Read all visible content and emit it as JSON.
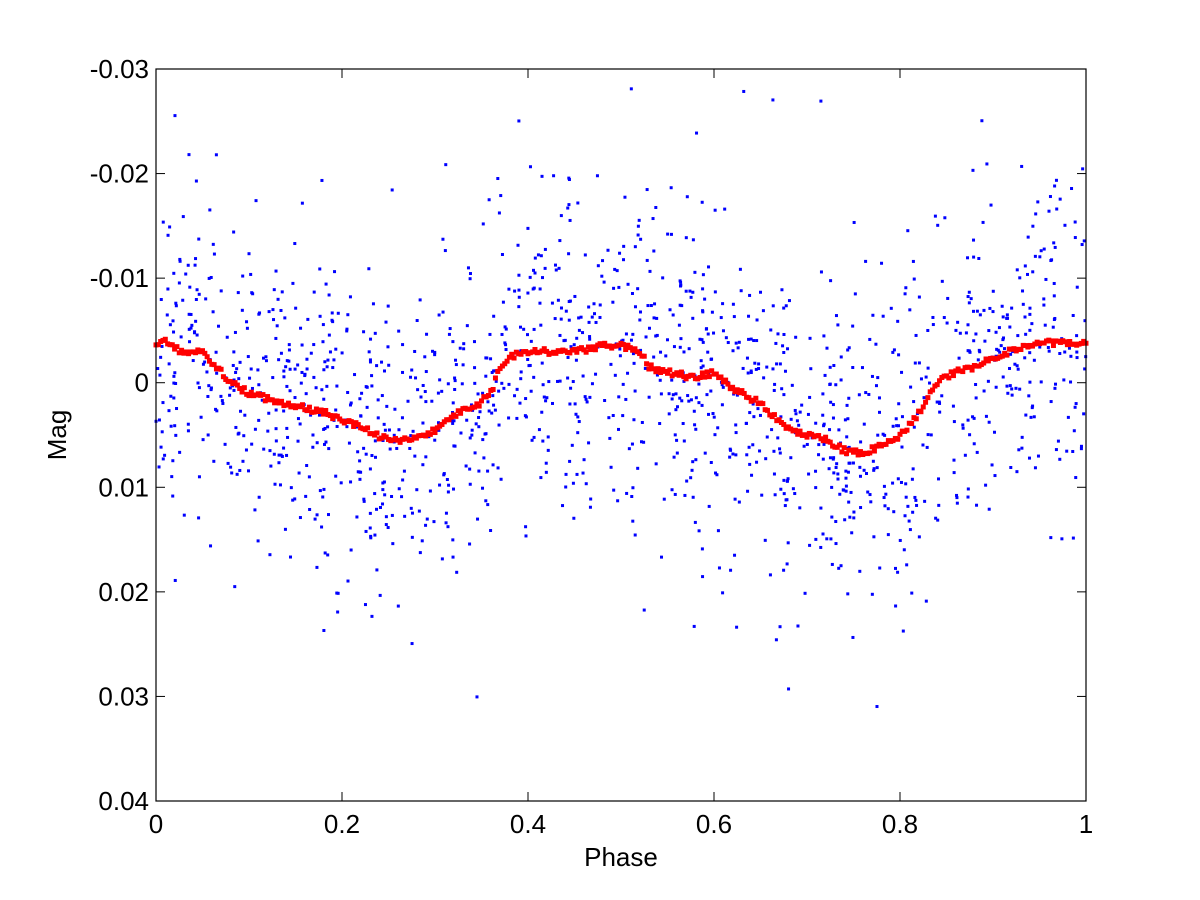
{
  "chart_data": {
    "type": "scatter",
    "title": "",
    "xlabel": "Phase",
    "ylabel": "Mag",
    "xlim": [
      0,
      1
    ],
    "ylim": [
      0.04,
      -0.03
    ],
    "y_axis_reversed": true,
    "grid": false,
    "legend": "none",
    "x_ticks": [
      0,
      0.2,
      0.4,
      0.6,
      0.8,
      1
    ],
    "x_tick_labels": [
      "0",
      "0.2",
      "0.4",
      "0.6",
      "0.8",
      "1"
    ],
    "y_ticks": [
      -0.03,
      -0.02,
      -0.01,
      0,
      0.01,
      0.02,
      0.03,
      0.04
    ],
    "y_tick_labels": [
      "-0.03",
      "-0.02",
      "-0.01",
      "0",
      "0.01",
      "0.02",
      "0.03",
      "0.04"
    ],
    "series": [
      {
        "kind": "points",
        "color": "#0000ff",
        "description_values": "approx. 1500 individual photometric measurements scattered about the mean curve with standard deviation ~0.008 mag",
        "approx_count": 1500,
        "approx_spread_sd": 0.008
      },
      {
        "kind": "mean-curve",
        "color": "#ff0000",
        "x": [
          0.0,
          0.01,
          0.02,
          0.03,
          0.05,
          0.06,
          0.08,
          0.1,
          0.12,
          0.15,
          0.18,
          0.2,
          0.22,
          0.24,
          0.26,
          0.28,
          0.3,
          0.32,
          0.34,
          0.36,
          0.37,
          0.38,
          0.4,
          0.42,
          0.45,
          0.48,
          0.5,
          0.52,
          0.53,
          0.55,
          0.58,
          0.6,
          0.62,
          0.65,
          0.68,
          0.7,
          0.72,
          0.74,
          0.76,
          0.78,
          0.8,
          0.82,
          0.84,
          0.86,
          0.88,
          0.9,
          0.92,
          0.94,
          0.96,
          0.98,
          1.0
        ],
        "y": [
          -0.0035,
          -0.004,
          -0.0035,
          -0.0027,
          -0.003,
          -0.002,
          0.0,
          0.001,
          0.0015,
          0.0022,
          0.0028,
          0.0035,
          0.0042,
          0.0052,
          0.0055,
          0.0053,
          0.0045,
          0.003,
          0.0025,
          0.001,
          -0.0015,
          -0.0025,
          -0.003,
          -0.003,
          -0.003,
          -0.0035,
          -0.0035,
          -0.003,
          -0.0015,
          -0.001,
          -0.0005,
          -0.001,
          0.0005,
          0.002,
          0.0045,
          0.005,
          0.0055,
          0.0065,
          0.0068,
          0.006,
          0.005,
          0.003,
          0.0,
          -0.001,
          -0.0015,
          -0.0025,
          -0.003,
          -0.0035,
          -0.0038,
          -0.0038,
          -0.0038
        ]
      }
    ]
  }
}
